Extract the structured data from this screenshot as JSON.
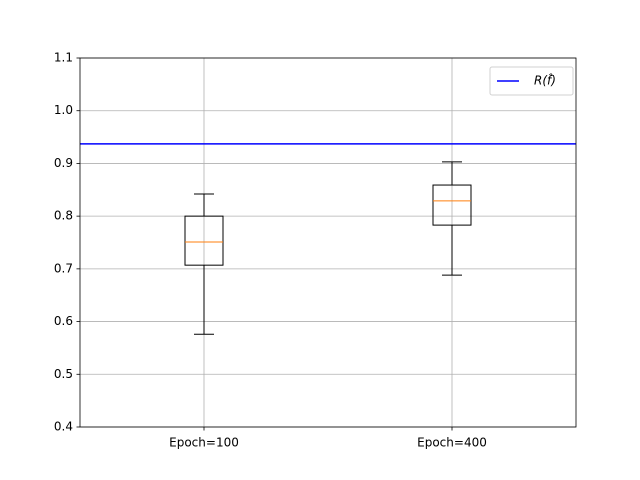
{
  "chart_data": {
    "type": "box",
    "categories": [
      "Epoch=100",
      "Epoch=400"
    ],
    "boxes": [
      {
        "min": 0.576,
        "q1": 0.707,
        "median": 0.751,
        "q3": 0.8,
        "max": 0.842
      },
      {
        "min": 0.688,
        "q1": 0.783,
        "median": 0.829,
        "q3": 0.859,
        "max": 0.903
      }
    ],
    "box_color": "#000000",
    "median_color": "#ff7f0e",
    "hline": {
      "name": "R(f̂)",
      "value": 0.937,
      "color": "#0000ff"
    },
    "ylim": [
      0.4,
      1.1
    ],
    "yticks": [
      0.4,
      0.5,
      0.6,
      0.7,
      0.8,
      0.9,
      {
        "value": 1.0,
        "label": "1.0"
      },
      1.1
    ],
    "grid": true,
    "legend": "upper right"
  }
}
